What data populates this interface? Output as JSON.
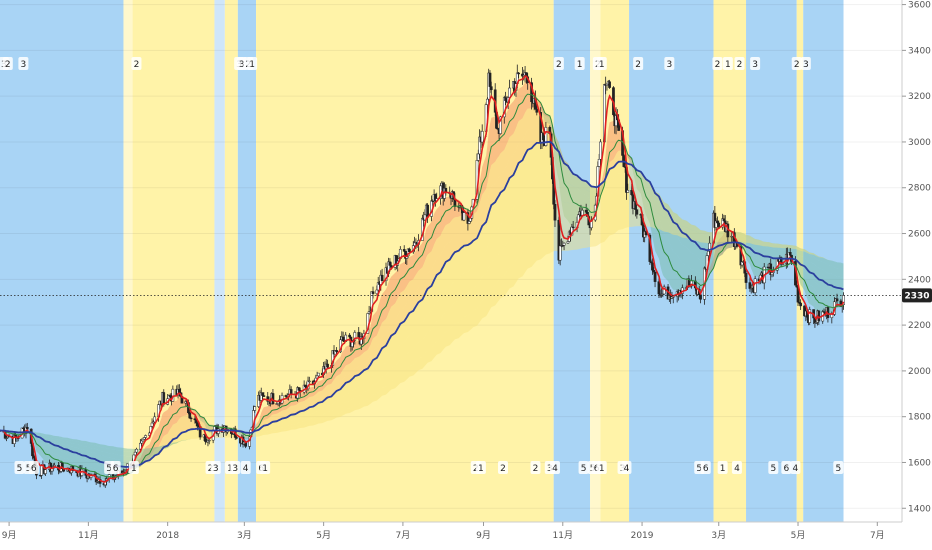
{
  "colors": {
    "yellow_zone": "#fff3a8",
    "yellow_zone_light": "#fff8cc",
    "blue_zone": "#a9d4f5",
    "blue_zone_light": "#cfe6fa",
    "candle": "#222222",
    "ema_red": "#e02020",
    "ema_blue": "#2b3f9e",
    "ema_green": "#2e8b3d",
    "ribbon_warm": "#f4825a",
    "ribbon_mid": "#f6c26b",
    "ribbon_light": "#f7e27a",
    "ribbon_cool": "#6fb8a0",
    "price_label_bg": "#222222",
    "axis_text": "#555555"
  },
  "price_label": "2330",
  "chart_data": {
    "type": "candlestick",
    "title": "",
    "xlabel": "",
    "ylabel": "",
    "ylim": [
      1340,
      3620
    ],
    "y_ticks": [
      "3600",
      "3400",
      "3200",
      "3000",
      "2800",
      "2600",
      "2400",
      "2200",
      "2000",
      "1800",
      "1600",
      "1400"
    ],
    "y_tick_values": [
      3600,
      3400,
      3200,
      3000,
      2800,
      2600,
      2400,
      2200,
      2000,
      1800,
      1600,
      1400
    ],
    "x_range": [
      "2017-08-25",
      "2019-07-20"
    ],
    "x_ticks": [
      {
        "label": "9月",
        "date": "2017-09-01"
      },
      {
        "label": "11月",
        "date": "2017-11-01"
      },
      {
        "label": "2018",
        "date": "2018-01-01"
      },
      {
        "label": "3月",
        "date": "2018-03-01"
      },
      {
        "label": "5月",
        "date": "2018-05-01"
      },
      {
        "label": "7月",
        "date": "2018-07-01"
      },
      {
        "label": "9月",
        "date": "2018-09-01"
      },
      {
        "label": "11月",
        "date": "2018-11-01"
      },
      {
        "label": "2019",
        "date": "2019-01-01"
      },
      {
        "label": "3月",
        "date": "2019-03-01"
      },
      {
        "label": "5月",
        "date": "2019-05-01"
      },
      {
        "label": "7月",
        "date": "2019-07-01"
      }
    ],
    "last_price": 2330,
    "price_path": [
      [
        "2017-08-25",
        1740
      ],
      [
        "2017-09-05",
        1700
      ],
      [
        "2017-09-15",
        1760
      ],
      [
        "2017-09-22",
        1560
      ],
      [
        "2017-10-05",
        1580
      ],
      [
        "2017-10-20",
        1570
      ],
      [
        "2017-11-01",
        1540
      ],
      [
        "2017-11-15",
        1520
      ],
      [
        "2017-11-28",
        1560
      ],
      [
        "2017-12-10",
        1650
      ],
      [
        "2017-12-20",
        1780
      ],
      [
        "2017-12-28",
        1880
      ],
      [
        "2018-01-10",
        1900
      ],
      [
        "2018-01-20",
        1800
      ],
      [
        "2018-01-28",
        1700
      ],
      [
        "2018-02-06",
        1740
      ],
      [
        "2018-02-14",
        1760
      ],
      [
        "2018-02-24",
        1720
      ],
      [
        "2018-03-04",
        1680
      ],
      [
        "2018-03-10",
        1880
      ],
      [
        "2018-03-25",
        1880
      ],
      [
        "2018-04-15",
        1910
      ],
      [
        "2018-04-30",
        1980
      ],
      [
        "2018-05-15",
        2130
      ],
      [
        "2018-05-30",
        2140
      ],
      [
        "2018-06-10",
        2380
      ],
      [
        "2018-06-25",
        2480
      ],
      [
        "2018-07-10",
        2560
      ],
      [
        "2018-07-25",
        2780
      ],
      [
        "2018-08-05",
        2800
      ],
      [
        "2018-08-20",
        2620
      ],
      [
        "2018-09-01",
        3100
      ],
      [
        "2018-09-05",
        3260
      ],
      [
        "2018-09-12",
        3050
      ],
      [
        "2018-09-22",
        3250
      ],
      [
        "2018-10-05",
        3300
      ],
      [
        "2018-10-15",
        3000
      ],
      [
        "2018-10-22",
        3050
      ],
      [
        "2018-10-28",
        2480
      ],
      [
        "2018-11-05",
        2600
      ],
      [
        "2018-11-15",
        2700
      ],
      [
        "2018-11-25",
        2650
      ],
      [
        "2018-12-03",
        3270
      ],
      [
        "2018-12-10",
        3150
      ],
      [
        "2018-12-20",
        2820
      ],
      [
        "2018-12-28",
        2700
      ],
      [
        "2019-01-05",
        2560
      ],
      [
        "2019-01-15",
        2330
      ],
      [
        "2019-01-25",
        2350
      ],
      [
        "2019-02-05",
        2380
      ],
      [
        "2019-02-15",
        2330
      ],
      [
        "2019-02-25",
        2660
      ],
      [
        "2019-03-05",
        2640
      ],
      [
        "2019-03-15",
        2560
      ],
      [
        "2019-03-25",
        2360
      ],
      [
        "2019-04-05",
        2420
      ],
      [
        "2019-04-15",
        2460
      ],
      [
        "2019-04-25",
        2500
      ],
      [
        "2019-05-02",
        2300
      ],
      [
        "2019-05-12",
        2220
      ],
      [
        "2019-05-22",
        2250
      ],
      [
        "2019-06-01",
        2300
      ],
      [
        "2019-06-05",
        2330
      ]
    ],
    "zones": [
      {
        "start": "2017-08-25",
        "end": "2017-11-28",
        "color": "blue"
      },
      {
        "start": "2017-11-28",
        "end": "2017-12-05",
        "color": "yellow_light"
      },
      {
        "start": "2017-12-05",
        "end": "2018-02-06",
        "color": "yellow"
      },
      {
        "start": "2018-02-06",
        "end": "2018-02-14",
        "color": "blue_light"
      },
      {
        "start": "2018-02-14",
        "end": "2018-02-24",
        "color": "yellow"
      },
      {
        "start": "2018-02-24",
        "end": "2018-03-10",
        "color": "blue"
      },
      {
        "start": "2018-03-10",
        "end": "2018-10-25",
        "color": "yellow"
      },
      {
        "start": "2018-10-25",
        "end": "2018-11-22",
        "color": "blue"
      },
      {
        "start": "2018-11-22",
        "end": "2018-11-30",
        "color": "yellow_light"
      },
      {
        "start": "2018-11-30",
        "end": "2018-12-22",
        "color": "yellow"
      },
      {
        "start": "2018-12-22",
        "end": "2019-02-25",
        "color": "blue"
      },
      {
        "start": "2019-02-25",
        "end": "2019-03-22",
        "color": "yellow"
      },
      {
        "start": "2019-03-22",
        "end": "2019-04-30",
        "color": "blue"
      },
      {
        "start": "2019-04-30",
        "end": "2019-05-05",
        "color": "yellow"
      },
      {
        "start": "2019-05-05",
        "end": "2019-06-05",
        "color": "blue"
      }
    ],
    "top_labels": [
      {
        "text": "3",
        "date": "2017-08-28"
      },
      {
        "text": "2",
        "date": "2017-08-31"
      },
      {
        "text": "3",
        "date": "2017-09-12"
      },
      {
        "text": "2",
        "date": "2017-12-08"
      },
      {
        "text": "3",
        "date": "2018-02-25"
      },
      {
        "text": "3",
        "date": "2018-02-27"
      },
      {
        "text": "2",
        "date": "2018-03-04"
      },
      {
        "text": "1",
        "date": "2018-03-07"
      },
      {
        "text": "2",
        "date": "2018-10-29"
      },
      {
        "text": "1",
        "date": "2018-11-14"
      },
      {
        "text": "2",
        "date": "2018-11-28"
      },
      {
        "text": "1",
        "date": "2018-12-01"
      },
      {
        "text": "2",
        "date": "2018-12-29"
      },
      {
        "text": "3",
        "date": "2019-01-22"
      },
      {
        "text": "2",
        "date": "2019-02-28"
      },
      {
        "text": "1",
        "date": "2019-03-08"
      },
      {
        "text": "2",
        "date": "2019-03-17"
      },
      {
        "text": "3",
        "date": "2019-03-29"
      },
      {
        "text": "2",
        "date": "2019-04-30"
      },
      {
        "text": "3",
        "date": "2019-05-07"
      }
    ],
    "bottom_labels": [
      {
        "text": "5",
        "date": "2017-09-09"
      },
      {
        "text": "5",
        "date": "2017-09-16"
      },
      {
        "text": "6",
        "date": "2017-09-20"
      },
      {
        "text": "5",
        "date": "2017-11-17"
      },
      {
        "text": "6",
        "date": "2017-11-22"
      },
      {
        "text": "1",
        "date": "2017-12-06"
      },
      {
        "text": "2",
        "date": "2018-02-03"
      },
      {
        "text": "3",
        "date": "2018-02-07"
      },
      {
        "text": "1",
        "date": "2018-02-18"
      },
      {
        "text": "3",
        "date": "2018-02-22"
      },
      {
        "text": "4",
        "date": "2018-03-02"
      },
      {
        "text": "6",
        "date": "2018-03-14"
      },
      {
        "text": "1",
        "date": "2018-03-17"
      },
      {
        "text": "2",
        "date": "2018-08-26"
      },
      {
        "text": "1",
        "date": "2018-08-30"
      },
      {
        "text": "2",
        "date": "2018-09-16"
      },
      {
        "text": "2",
        "date": "2018-10-11"
      },
      {
        "text": "3",
        "date": "2018-10-22"
      },
      {
        "text": "4",
        "date": "2018-10-26"
      },
      {
        "text": "5",
        "date": "2018-11-17"
      },
      {
        "text": "5",
        "date": "2018-11-24"
      },
      {
        "text": "6",
        "date": "2018-11-27"
      },
      {
        "text": "1",
        "date": "2018-12-01"
      },
      {
        "text": "3",
        "date": "2018-12-17"
      },
      {
        "text": "4",
        "date": "2018-12-20"
      },
      {
        "text": "5",
        "date": "2019-02-14"
      },
      {
        "text": "6",
        "date": "2019-02-19"
      },
      {
        "text": "1",
        "date": "2019-03-04"
      },
      {
        "text": "4",
        "date": "2019-03-15"
      },
      {
        "text": "5",
        "date": "2019-04-12"
      },
      {
        "text": "6",
        "date": "2019-04-22"
      },
      {
        "text": "4",
        "date": "2019-04-29"
      },
      {
        "text": "5",
        "date": "2019-06-01"
      }
    ]
  }
}
